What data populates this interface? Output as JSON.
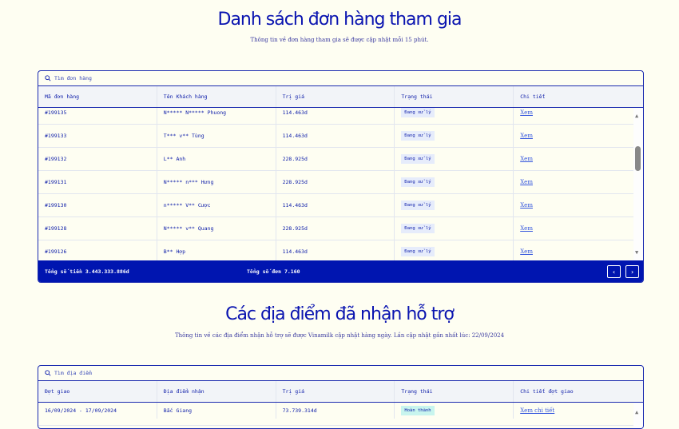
{
  "orders": {
    "title": "Danh sách đơn hàng tham gia",
    "subtitle": "Thông tin về đơn hàng tham gia sẽ được cập nhật mỗi 15 phút.",
    "search_placeholder": "Tìm đơn hàng",
    "columns": [
      "Mã đơn hàng",
      "Tên Khách hàng",
      "Trị giá",
      "Trạng thái",
      "Chi tiết"
    ],
    "rows": [
      {
        "id": "#199135",
        "name": "N***** N***** Phuong",
        "value": "114.463d",
        "status": "Đang xử lý",
        "link": "Xem"
      },
      {
        "id": "#199133",
        "name": "T*** v** Tùng",
        "value": "114.463d",
        "status": "Đang xử lý",
        "link": "Xem"
      },
      {
        "id": "#199132",
        "name": "L** Anh",
        "value": "228.925d",
        "status": "Đang xử lý",
        "link": "Xem"
      },
      {
        "id": "#199131",
        "name": "N***** n*** Hưng",
        "value": "228.925d",
        "status": "Đang xử lý",
        "link": "Xem"
      },
      {
        "id": "#199130",
        "name": "n***** V** Cược",
        "value": "114.463d",
        "status": "Đang xử lý",
        "link": "Xem"
      },
      {
        "id": "#199128",
        "name": "N***** v** Quang",
        "value": "228.925d",
        "status": "Đang xử lý",
        "link": "Xem"
      },
      {
        "id": "#199126",
        "name": "B** Hợp",
        "value": "114.463d",
        "status": "Đang xử lý",
        "link": "Xem"
      }
    ],
    "total_amount": "Tổng số tiền 3.443.333.886d",
    "total_orders": "Tổng số đơn 7.160",
    "prev": "‹",
    "next": "›"
  },
  "locations": {
    "title": "Các địa điểm đã nhận hỗ trợ",
    "subtitle": "Thông tin về các địa điểm nhận hỗ trợ sẽ được Vinamilk cập nhật hàng ngày. Lần cập nhật gần nhất lúc: 22/09/2024",
    "search_placeholder": "Tìm địa điểm",
    "columns": [
      "Đợt giao",
      "Địa điểm nhận",
      "Trị giá",
      "Trạng thái",
      "Chi tiết đợt giao"
    ],
    "rows": [
      {
        "period": "16/09/2024 - 17/09/2024",
        "place": "Bắc Giang",
        "value": "73.739.314d",
        "status": "Hoàn thành",
        "link": "Xem chi tiết"
      }
    ]
  }
}
